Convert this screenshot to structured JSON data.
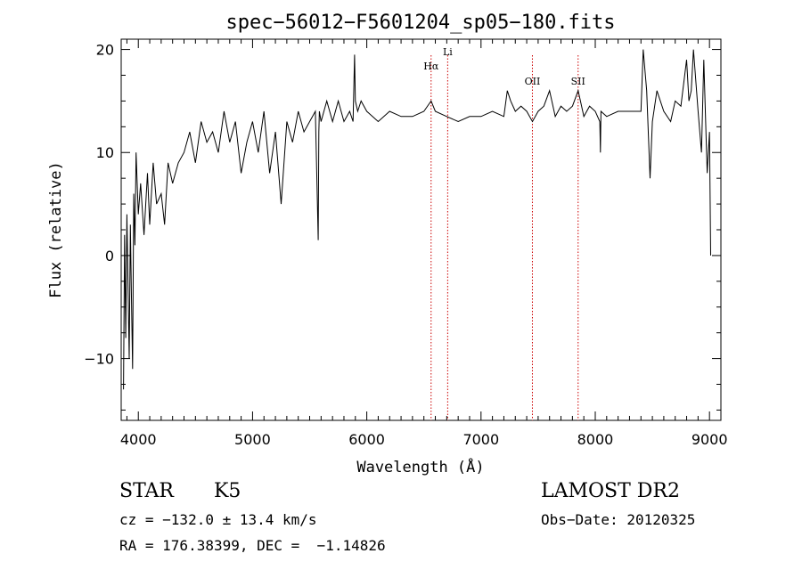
{
  "chart_data": {
    "type": "line",
    "title": "spec−56012−F5601204_sp05−180.fits",
    "xlabel": "Wavelength (Å)",
    "ylabel": "Flux (relative)",
    "xlim": [
      3850,
      9100
    ],
    "ylim": [
      -16,
      21
    ],
    "xticks": [
      4000,
      5000,
      6000,
      7000,
      8000,
      9000
    ],
    "yticks": [
      -10,
      0,
      10,
      20
    ],
    "grid": false,
    "line_color": "#000000",
    "marker_color": "#cc0000",
    "lines": [
      {
        "label": "Hα",
        "x": 6563
      },
      {
        "label": "Li",
        "x": 6708
      },
      {
        "label": "OII",
        "x": 7450
      },
      {
        "label": "SII",
        "x": 7850
      }
    ],
    "series": [
      {
        "x": [
          3870,
          3880,
          3890,
          3900,
          3910,
          3920,
          3930,
          3940,
          3950,
          3960,
          3970,
          3980,
          4000,
          4020,
          4050,
          4080,
          4100,
          4130,
          4160,
          4200,
          4230,
          4260,
          4300,
          4350,
          4400,
          4450,
          4500,
          4550,
          4600,
          4650,
          4700,
          4750,
          4800,
          4850,
          4900,
          4950,
          5000,
          5050,
          5100,
          5150,
          5200,
          5250,
          5300,
          5350,
          5400,
          5450,
          5500,
          5550,
          5575,
          5580,
          5585,
          5600,
          5650,
          5700,
          5750,
          5800,
          5850,
          5880,
          5893,
          5900,
          5920,
          5950,
          6000,
          6050,
          6100,
          6200,
          6300,
          6400,
          6500,
          6563,
          6600,
          6700,
          6800,
          6900,
          7000,
          7100,
          7200,
          7230,
          7260,
          7300,
          7350,
          7400,
          7450,
          7500,
          7550,
          7600,
          7650,
          7700,
          7750,
          7800,
          7850,
          7900,
          7950,
          8000,
          8040,
          8045,
          8050,
          8100,
          8200,
          8300,
          8400,
          8420,
          8450,
          8480,
          8500,
          8540,
          8600,
          8660,
          8700,
          8750,
          8800,
          8820,
          8840,
          8860,
          8900,
          8930,
          8950,
          8980,
          9000,
          9010
        ],
        "values": [
          -13,
          2,
          -8,
          4,
          -3,
          -10,
          3,
          -4,
          -11,
          6,
          1,
          10,
          4,
          7,
          2,
          8,
          3,
          9,
          5,
          6,
          3,
          9,
          7,
          9,
          10,
          12,
          9,
          13,
          11,
          12,
          10,
          14,
          11,
          13,
          8,
          11,
          13,
          10,
          14,
          8,
          12,
          5,
          13,
          11,
          14,
          12,
          13,
          14,
          1.5,
          12,
          14,
          13,
          15,
          13,
          15,
          13,
          14,
          13,
          19.5,
          15,
          14,
          15,
          14,
          13.5,
          13,
          14,
          13.5,
          13.5,
          14,
          15,
          14,
          13.5,
          13,
          13.5,
          13.5,
          14,
          13.5,
          16,
          15,
          14,
          14.5,
          14,
          13,
          14,
          14.5,
          16,
          13.5,
          14.5,
          14,
          14.5,
          16,
          13.5,
          14.5,
          14,
          13,
          10,
          14,
          13.5,
          14,
          14,
          14,
          20,
          16,
          7.5,
          13,
          16,
          14,
          13,
          15,
          14.5,
          19,
          15,
          16,
          20,
          14,
          10,
          19,
          8,
          12,
          0
        ]
      }
    ]
  },
  "info": {
    "class": "STAR",
    "subclass": "K5",
    "survey": "LAMOST DR2",
    "cz": "cz = −132.0 ± 13.4 km/s",
    "obs_date": "Obs−Date: 20120325",
    "coords": "RA = 176.38399, DEC =  −1.14826"
  }
}
